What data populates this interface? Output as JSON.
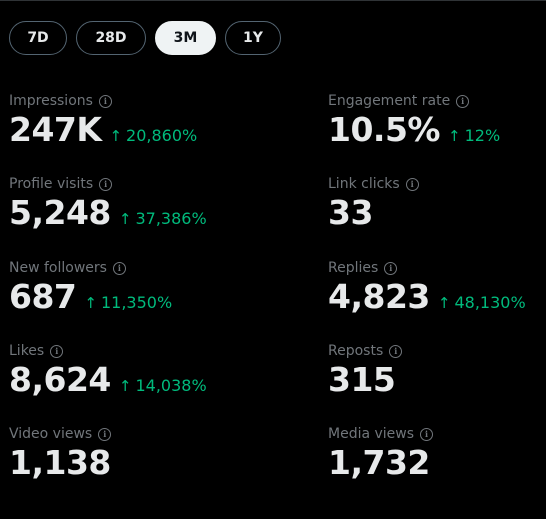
{
  "range_tabs": [
    {
      "label": "7D",
      "active": false
    },
    {
      "label": "28D",
      "active": false
    },
    {
      "label": "3M",
      "active": true
    },
    {
      "label": "1Y",
      "active": false
    }
  ],
  "colors": {
    "background": "#000000",
    "text_primary": "#e7e9ea",
    "text_secondary": "#71767b",
    "positive_change": "#00ba7c",
    "active_tab_bg": "#eff3f4",
    "tab_border": "#536471"
  },
  "icons": {
    "info": "info-circle-icon",
    "trend": "arrow-up-icon"
  },
  "metrics": {
    "impressions": {
      "label": "Impressions",
      "value": "247K",
      "change": "20,860%"
    },
    "engagement_rate": {
      "label": "Engagement rate",
      "value": "10.5%",
      "change": "12%"
    },
    "profile_visits": {
      "label": "Profile visits",
      "value": "5,248",
      "change": "37,386%"
    },
    "link_clicks": {
      "label": "Link clicks",
      "value": "33"
    },
    "new_followers": {
      "label": "New followers",
      "value": "687",
      "change": "11,350%"
    },
    "replies": {
      "label": "Replies",
      "value": "4,823",
      "change": "48,130%"
    },
    "likes": {
      "label": "Likes",
      "value": "8,624",
      "change": "14,038%"
    },
    "reposts": {
      "label": "Reposts",
      "value": "315"
    },
    "video_views": {
      "label": "Video views",
      "value": "1,138"
    },
    "media_views": {
      "label": "Media views",
      "value": "1,732"
    }
  }
}
